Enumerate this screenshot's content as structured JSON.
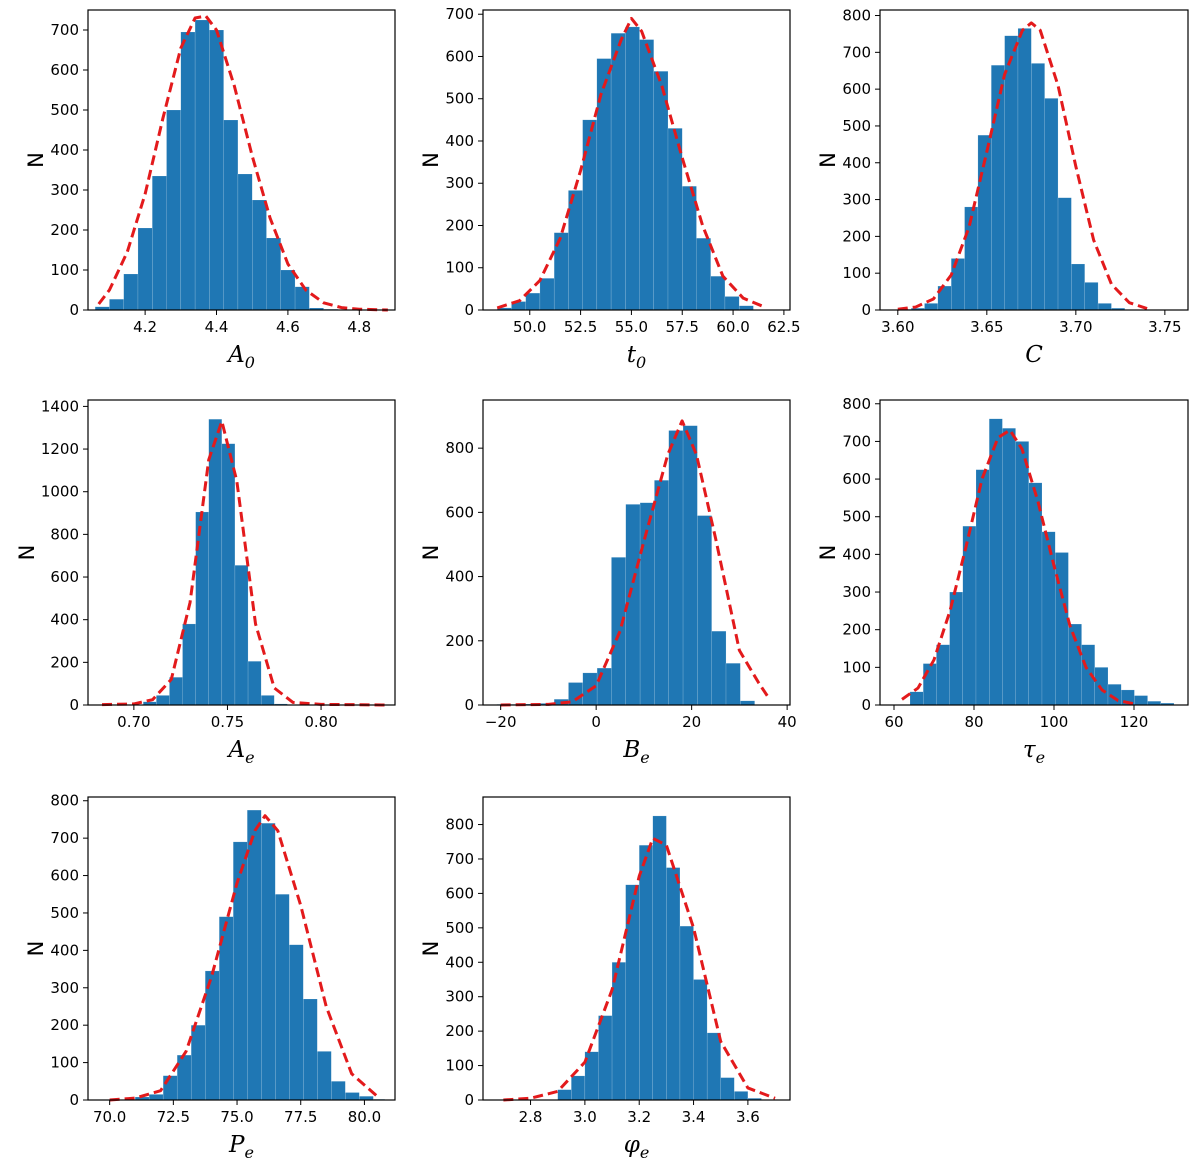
{
  "chart_data": [
    {
      "type": "bar",
      "xlabel": "A",
      "xlabel_sub": "0",
      "ylabel": "N",
      "xlim": [
        4.04,
        4.9
      ],
      "ylim": [
        0,
        750
      ],
      "xticks": [
        4.2,
        4.4,
        4.6,
        4.8
      ],
      "xtick_labels": [
        "4.2",
        "4.4",
        "4.6",
        "4.8"
      ],
      "yticks": [
        0,
        100,
        200,
        300,
        400,
        500,
        600,
        700
      ],
      "ytick_labels": [
        "0",
        "100",
        "200",
        "300",
        "400",
        "500",
        "600",
        "700"
      ],
      "bin_edges": [
        4.06,
        4.1,
        4.14,
        4.18,
        4.22,
        4.26,
        4.3,
        4.34,
        4.38,
        4.42,
        4.46,
        4.5,
        4.54,
        4.58,
        4.62,
        4.66,
        4.7,
        4.74
      ],
      "counts": [
        8,
        27,
        90,
        205,
        335,
        500,
        695,
        725,
        700,
        475,
        340,
        275,
        180,
        100,
        58,
        5,
        2
      ],
      "fit_x": [
        4.07,
        4.1,
        4.15,
        4.2,
        4.25,
        4.3,
        4.34,
        4.37,
        4.4,
        4.45,
        4.5,
        4.55,
        4.6,
        4.65,
        4.7,
        4.75,
        4.8,
        4.88
      ],
      "fit_y": [
        15,
        50,
        145,
        290,
        480,
        655,
        730,
        735,
        700,
        560,
        385,
        230,
        115,
        50,
        18,
        6,
        2,
        0
      ],
      "bar_color": "#1f77b4",
      "fit_color": "#e31a1c"
    },
    {
      "type": "bar",
      "xlabel": "t",
      "xlabel_sub": "0",
      "ylabel": "N",
      "xlim": [
        47.7,
        62.8
      ],
      "ylim": [
        0,
        710
      ],
      "xticks": [
        50.0,
        52.5,
        55.0,
        57.5,
        60.0,
        62.5
      ],
      "xtick_labels": [
        "50.0",
        "52.5",
        "55.0",
        "57.5",
        "60.0",
        "62.5"
      ],
      "yticks": [
        0,
        100,
        200,
        300,
        400,
        500,
        600,
        700
      ],
      "ytick_labels": [
        "0",
        "100",
        "200",
        "300",
        "400",
        "500",
        "600",
        "700"
      ],
      "bin_edges": [
        48.4,
        49.1,
        49.8,
        50.5,
        51.2,
        51.9,
        52.6,
        53.3,
        54.0,
        54.7,
        55.4,
        56.1,
        56.8,
        57.5,
        58.2,
        58.9,
        59.6,
        60.3,
        61.0
      ],
      "counts": [
        5,
        20,
        40,
        75,
        183,
        283,
        450,
        595,
        655,
        670,
        640,
        565,
        430,
        293,
        170,
        80,
        32,
        10
      ],
      "fit_x": [
        48.4,
        49.5,
        50.5,
        51.5,
        52.5,
        53.5,
        54.5,
        55.0,
        55.5,
        56.5,
        57.5,
        58.5,
        59.5,
        60.5,
        61.5
      ],
      "fit_y": [
        5,
        22,
        70,
        170,
        330,
        510,
        640,
        690,
        660,
        530,
        360,
        200,
        80,
        28,
        8
      ],
      "bar_color": "#1f77b4",
      "fit_color": "#e31a1c"
    },
    {
      "type": "bar",
      "xlabel": "C",
      "xlabel_sub": "",
      "ylabel": "N",
      "xlim": [
        3.59,
        3.763
      ],
      "ylim": [
        0,
        815
      ],
      "xticks": [
        3.6,
        3.65,
        3.7,
        3.75
      ],
      "xtick_labels": [
        "3.60",
        "3.65",
        "3.70",
        "3.75"
      ],
      "yticks": [
        0,
        100,
        200,
        300,
        400,
        500,
        600,
        700,
        800
      ],
      "ytick_labels": [
        "0",
        "100",
        "200",
        "300",
        "400",
        "500",
        "600",
        "700",
        "800"
      ],
      "bin_edges": [
        3.6,
        3.6075,
        3.615,
        3.6225,
        3.63,
        3.6375,
        3.645,
        3.6525,
        3.66,
        3.6675,
        3.675,
        3.6825,
        3.69,
        3.6975,
        3.705,
        3.7125,
        3.72,
        3.7275,
        3.735,
        3.7425
      ],
      "counts": [
        2,
        5,
        18,
        65,
        140,
        280,
        475,
        665,
        745,
        765,
        670,
        575,
        305,
        125,
        75,
        18,
        5,
        1,
        0
      ],
      "fit_x": [
        3.6,
        3.61,
        3.62,
        3.63,
        3.64,
        3.65,
        3.66,
        3.67,
        3.675,
        3.68,
        3.69,
        3.7,
        3.71,
        3.72,
        3.73,
        3.74
      ],
      "fit_y": [
        2,
        8,
        30,
        95,
        225,
        430,
        640,
        760,
        780,
        760,
        610,
        390,
        190,
        70,
        20,
        4
      ],
      "bar_color": "#1f77b4",
      "fit_color": "#e31a1c"
    },
    {
      "type": "bar",
      "xlabel": "A",
      "xlabel_sub": "e",
      "ylabel": "N",
      "xlim": [
        0.6755,
        0.8395
      ],
      "ylim": [
        0,
        1430
      ],
      "xticks": [
        0.7,
        0.75,
        0.8
      ],
      "xtick_labels": [
        "0.70",
        "0.75",
        "0.80"
      ],
      "yticks": [
        0,
        200,
        400,
        600,
        800,
        1000,
        1200,
        1400
      ],
      "ytick_labels": [
        "0",
        "200",
        "400",
        "600",
        "800",
        "1000",
        "1200",
        "1400"
      ],
      "bin_edges": [
        0.705,
        0.712,
        0.719,
        0.726,
        0.733,
        0.74,
        0.747,
        0.754,
        0.761,
        0.768,
        0.775,
        0.782
      ],
      "counts": [
        15,
        45,
        130,
        380,
        905,
        1340,
        1225,
        655,
        205,
        45,
        5
      ],
      "fit_x": [
        0.683,
        0.7,
        0.71,
        0.72,
        0.73,
        0.74,
        0.747,
        0.755,
        0.765,
        0.775,
        0.785,
        0.8,
        0.835
      ],
      "fit_y": [
        2,
        5,
        25,
        120,
        480,
        1150,
        1330,
        1050,
        380,
        80,
        12,
        3,
        0
      ],
      "bar_color": "#1f77b4",
      "fit_color": "#e31a1c"
    },
    {
      "type": "bar",
      "xlabel": "B",
      "xlabel_sub": "e",
      "ylabel": "N",
      "xlim": [
        -23.7,
        40.6
      ],
      "ylim": [
        0,
        950
      ],
      "xticks": [
        -20,
        0,
        20,
        40
      ],
      "xtick_labels": [
        "−20",
        "0",
        "20",
        "40"
      ],
      "yticks": [
        0,
        200,
        400,
        600,
        800
      ],
      "ytick_labels": [
        "0",
        "200",
        "400",
        "600",
        "800"
      ],
      "bin_edges": [
        -20.8,
        -17.8,
        -14.8,
        -11.8,
        -8.8,
        -5.8,
        -2.8,
        0.2,
        3.2,
        6.2,
        9.2,
        12.2,
        15.2,
        18.2,
        21.2,
        24.2,
        27.2,
        30.2,
        33.2
      ],
      "counts": [
        2,
        2,
        3,
        5,
        18,
        70,
        100,
        115,
        460,
        625,
        630,
        700,
        855,
        870,
        590,
        230,
        130,
        13
      ],
      "fit_x": [
        -20,
        -10,
        -5,
        0,
        5,
        10,
        15,
        18,
        21,
        25,
        30,
        34,
        36
      ],
      "fit_y": [
        0,
        2,
        10,
        60,
        230,
        510,
        780,
        885,
        780,
        520,
        170,
        70,
        25
      ],
      "bar_color": "#1f77b4",
      "fit_color": "#e31a1c"
    },
    {
      "type": "bar",
      "xlabel": "τ",
      "xlabel_sub": "e",
      "ylabel": "N",
      "xlim": [
        56.5,
        133.5
      ],
      "ylim": [
        0,
        810
      ],
      "xticks": [
        60,
        80,
        100,
        120
      ],
      "xtick_labels": [
        "60",
        "80",
        "100",
        "120"
      ],
      "yticks": [
        0,
        100,
        200,
        300,
        400,
        500,
        600,
        700,
        800
      ],
      "ytick_labels": [
        "0",
        "100",
        "200",
        "300",
        "400",
        "500",
        "600",
        "700",
        "800"
      ],
      "bin_edges": [
        64,
        67.3,
        70.6,
        73.9,
        77.2,
        80.5,
        83.8,
        87.1,
        90.4,
        93.7,
        97,
        100.3,
        103.6,
        106.9,
        110.2,
        113.5,
        116.8,
        120.1,
        123.4,
        126.7,
        130
      ],
      "counts": [
        35,
        110,
        160,
        300,
        475,
        625,
        760,
        735,
        700,
        590,
        460,
        405,
        215,
        160,
        100,
        55,
        40,
        25,
        10,
        5
      ],
      "fit_x": [
        62,
        66,
        70,
        74,
        78,
        82,
        86,
        89,
        92,
        96,
        100,
        104,
        108,
        112,
        116,
        120
      ],
      "fit_y": [
        15,
        45,
        120,
        250,
        420,
        600,
        710,
        730,
        680,
        540,
        370,
        210,
        100,
        40,
        12,
        3
      ],
      "bar_color": "#1f77b4",
      "fit_color": "#e31a1c"
    },
    {
      "type": "bar",
      "xlabel": "P",
      "xlabel_sub": "e",
      "ylabel": "N",
      "xlim": [
        69.15,
        81.2
      ],
      "ylim": [
        0,
        810
      ],
      "xticks": [
        70.0,
        72.5,
        75.0,
        77.5,
        80.0
      ],
      "xtick_labels": [
        "70.0",
        "72.5",
        "75.0",
        "77.5",
        "80.0"
      ],
      "yticks": [
        0,
        100,
        200,
        300,
        400,
        500,
        600,
        700,
        800
      ],
      "ytick_labels": [
        "0",
        "100",
        "200",
        "300",
        "400",
        "500",
        "600",
        "700",
        "800"
      ],
      "bin_edges": [
        71.0,
        71.55,
        72.1,
        72.65,
        73.2,
        73.75,
        74.3,
        74.85,
        75.4,
        75.95,
        76.5,
        77.05,
        77.6,
        78.15,
        78.7,
        79.25,
        79.8,
        80.35,
        80.8
      ],
      "counts": [
        8,
        15,
        65,
        120,
        200,
        345,
        490,
        690,
        775,
        740,
        550,
        415,
        270,
        130,
        50,
        20,
        10,
        2
      ],
      "fit_x": [
        70.0,
        71.0,
        72.0,
        73.0,
        74.0,
        75.0,
        75.7,
        76.1,
        76.6,
        77.5,
        78.5,
        79.5,
        80.5
      ],
      "fit_y": [
        0,
        5,
        25,
        130,
        330,
        580,
        720,
        760,
        720,
        520,
        250,
        70,
        10
      ],
      "bar_color": "#1f77b4",
      "fit_color": "#e31a1c"
    },
    {
      "type": "bar",
      "xlabel": "φ",
      "xlabel_sub": "e",
      "ylabel": "N",
      "xlim": [
        2.625,
        3.755
      ],
      "ylim": [
        0,
        880
      ],
      "xticks": [
        2.8,
        3.0,
        3.2,
        3.4,
        3.6
      ],
      "xtick_labels": [
        "2.8",
        "3.0",
        "3.2",
        "3.4",
        "3.6"
      ],
      "yticks": [
        0,
        100,
        200,
        300,
        400,
        500,
        600,
        700,
        800
      ],
      "ytick_labels": [
        "0",
        "100",
        "200",
        "300",
        "400",
        "500",
        "600",
        "700",
        "800"
      ],
      "bin_edges": [
        2.9,
        2.95,
        3.0,
        3.05,
        3.1,
        3.15,
        3.2,
        3.25,
        3.3,
        3.35,
        3.4,
        3.45,
        3.5,
        3.55,
        3.6,
        3.65
      ],
      "counts": [
        30,
        70,
        140,
        245,
        400,
        625,
        740,
        825,
        675,
        505,
        350,
        195,
        65,
        25,
        5
      ],
      "fit_x": [
        2.7,
        2.8,
        2.9,
        3.0,
        3.1,
        3.2,
        3.25,
        3.3,
        3.4,
        3.5,
        3.6,
        3.7
      ],
      "fit_y": [
        0,
        5,
        25,
        110,
        320,
        650,
        760,
        740,
        500,
        170,
        35,
        5
      ],
      "bar_color": "#1f77b4",
      "fit_color": "#e31a1c"
    }
  ]
}
